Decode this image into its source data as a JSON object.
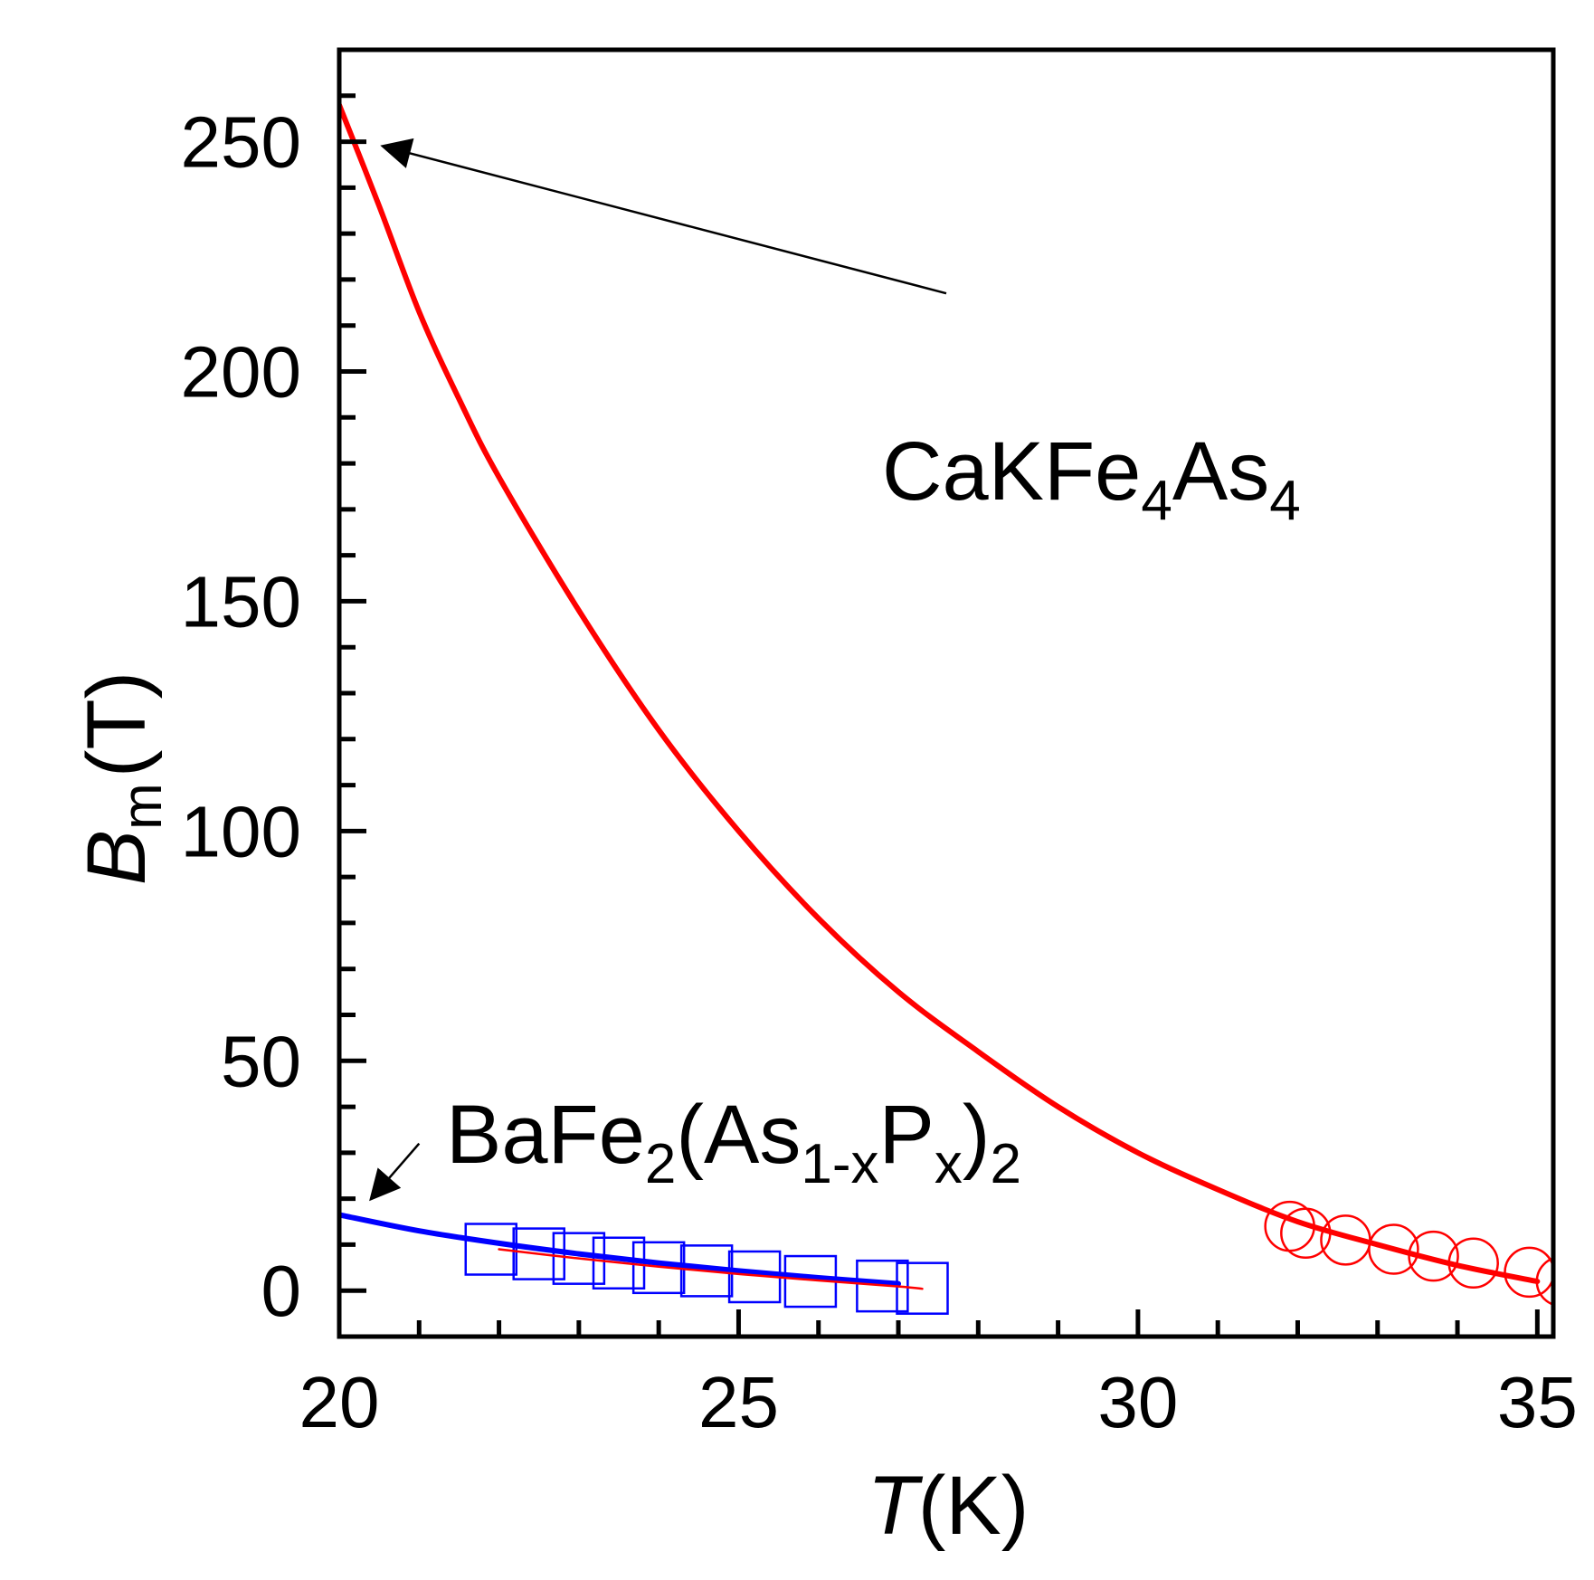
{
  "chart_data": {
    "type": "line",
    "title": "",
    "xlabel": {
      "symbol": "T",
      "unit": "(K)"
    },
    "ylabel": {
      "symbol": "B",
      "subscript": "m",
      "unit": "(T)"
    },
    "xlim": [
      20,
      35.2
    ],
    "ylim": [
      -10,
      270
    ],
    "x_ticks": [
      20,
      25,
      30,
      35
    ],
    "x_tick_labels": [
      "20",
      "25",
      "30",
      "35"
    ],
    "x_minor_step": 1,
    "y_ticks": [
      0,
      50,
      100,
      150,
      200,
      250
    ],
    "y_tick_labels": [
      "0",
      "50",
      "100",
      "150",
      "200",
      "250"
    ],
    "y_minor_step": 10,
    "grid": false,
    "series": [
      {
        "name": "CaKFe4As4 fit",
        "kind": "line",
        "color": "#ff0000",
        "x": [
          20,
          20.5,
          21,
          21.5,
          22,
          23,
          24,
          25,
          26,
          27,
          28,
          29,
          30,
          31,
          32,
          33,
          34,
          35
        ],
        "y": [
          258,
          236,
          213,
          194,
          177,
          148,
          122,
          100,
          81,
          65,
          52,
          40,
          30,
          22,
          15,
          10,
          5.5,
          2
        ]
      },
      {
        "name": "CaKFe4As4 data",
        "kind": "scatter",
        "marker": "circle",
        "color": "#ff0000",
        "x": [
          31.9,
          32.1,
          32.6,
          33.2,
          33.7,
          34.2,
          34.9,
          35.3
        ],
        "y": [
          14,
          12.5,
          11,
          9,
          7.5,
          6,
          4,
          2
        ]
      },
      {
        "name": "BaFe2(As1-xPx)2 fit",
        "kind": "line",
        "color": "#0000ff",
        "x": [
          20,
          21,
          22,
          23,
          24,
          25,
          26,
          27
        ],
        "y": [
          16.5,
          13,
          10.3,
          8,
          6,
          4.3,
          2.8,
          1.5
        ]
      },
      {
        "name": "BaFe2(As1-xPx)2 thin fit",
        "kind": "line",
        "thin": true,
        "color": "#ff0000",
        "x": [
          22,
          23,
          24,
          25,
          26,
          27,
          27.3
        ],
        "y": [
          9,
          7,
          5.2,
          3.6,
          2.2,
          0.9,
          0.4
        ]
      },
      {
        "name": "BaFe2(As1-xPx)2 data",
        "kind": "scatter",
        "marker": "square",
        "color": "#0000ff",
        "x": [
          21.9,
          22.5,
          23.0,
          23.5,
          24.0,
          24.6,
          25.2,
          25.9,
          26.8,
          27.3
        ],
        "y": [
          9,
          8,
          7,
          6,
          5,
          4.3,
          3,
          2,
          1,
          0.5
        ]
      }
    ],
    "annotations": [
      {
        "name": "cakfe4as4-label",
        "parts": [
          {
            "text": "CaKFe",
            "sub": false
          },
          {
            "text": "4",
            "sub": true
          },
          {
            "text": "As",
            "sub": false
          },
          {
            "text": "4",
            "sub": true
          }
        ],
        "arrow_from": [
          27.6,
          217
        ],
        "arrow_to": [
          20.55,
          249
        ]
      },
      {
        "name": "bafe2-label",
        "parts": [
          {
            "text": "BaFe",
            "sub": false
          },
          {
            "text": "2",
            "sub": true
          },
          {
            "text": "(As",
            "sub": false
          },
          {
            "text": "1-x",
            "sub": true
          },
          {
            "text": "P",
            "sub": false
          },
          {
            "text": "x",
            "sub": true
          },
          {
            "text": ")",
            "sub": false
          },
          {
            "text": "2",
            "sub": true
          }
        ],
        "arrow_from": [
          21.0,
          32
        ],
        "arrow_to": [
          20.4,
          20
        ]
      }
    ]
  }
}
